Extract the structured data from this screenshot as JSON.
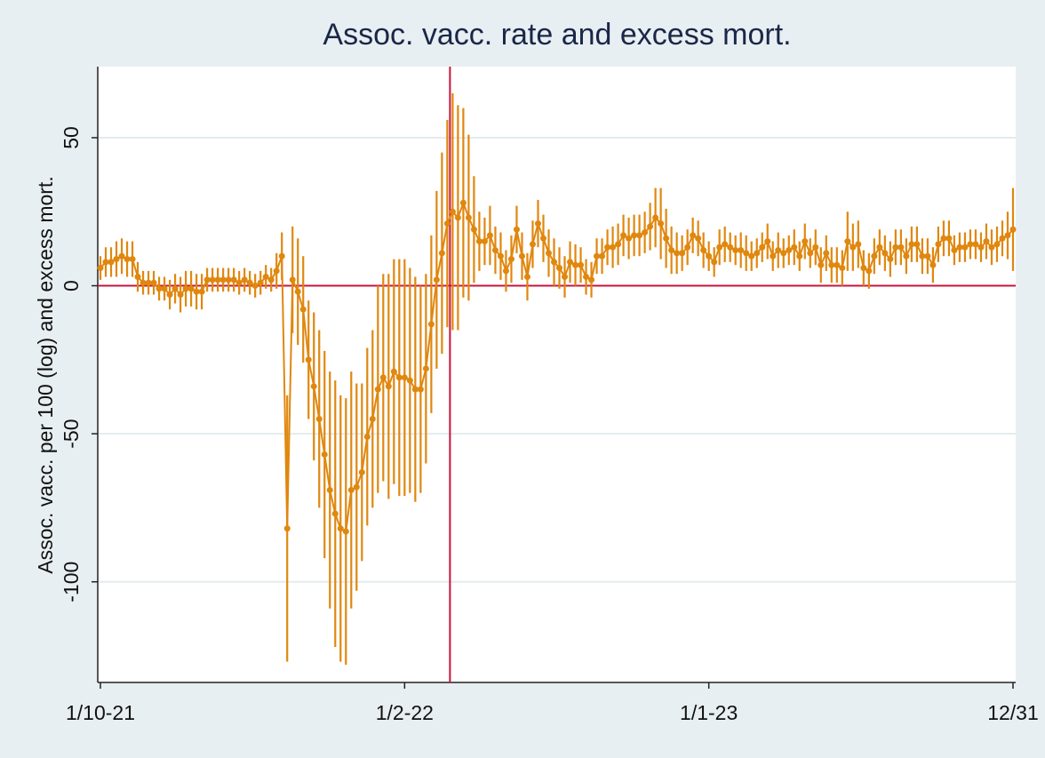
{
  "chart_data": {
    "type": "line",
    "title": "Assoc. vacc. rate and excess mort.",
    "ylabel": "Assoc. vacc. per 100 (log) and excess mort.",
    "x": [
      0,
      1,
      2,
      3,
      4,
      5,
      6,
      7,
      8,
      9,
      10,
      11,
      12,
      13,
      14,
      15,
      16,
      17,
      18,
      19,
      20,
      21,
      22,
      23,
      24,
      25,
      26,
      27,
      28,
      29,
      30,
      31,
      32,
      33,
      34,
      35,
      36,
      37,
      38,
      39,
      40,
      41,
      42,
      43,
      44,
      45,
      46,
      47,
      48,
      49,
      50,
      51,
      52,
      53,
      54,
      55,
      56,
      57,
      58,
      59,
      60,
      61,
      62,
      63,
      64,
      65,
      66,
      67,
      68,
      69,
      70,
      71,
      72,
      73,
      74,
      75,
      76,
      77,
      78,
      79,
      80,
      81,
      82,
      83,
      84,
      85,
      86,
      87,
      88,
      89,
      90,
      91,
      92,
      93,
      94,
      95,
      96,
      97,
      98,
      99,
      100,
      101,
      102,
      103,
      104,
      105,
      106,
      107,
      108,
      109,
      110,
      111,
      112,
      113,
      114,
      115,
      116,
      117,
      118,
      119,
      120,
      121,
      122,
      123,
      124,
      125,
      126,
      127,
      128,
      129,
      130,
      131,
      132,
      133,
      134,
      135,
      136,
      137,
      138,
      139,
      140,
      141,
      142,
      143,
      144,
      145,
      146,
      147,
      148,
      149,
      150,
      151,
      152,
      153,
      154,
      155,
      156,
      157,
      158,
      159,
      160,
      161,
      162,
      163,
      164,
      165,
      166,
      167,
      168,
      169,
      170,
      171
    ],
    "series": [
      {
        "color": "#e0870e",
        "values": [
          6,
          8,
          8,
          9,
          10,
          9,
          9,
          3,
          1,
          1,
          1,
          -1,
          -1,
          -3,
          -1,
          -3,
          -1,
          -1,
          -2,
          -2,
          2,
          2,
          2,
          2,
          2,
          2,
          1,
          2,
          1,
          0,
          1,
          3,
          2,
          5,
          10,
          -82,
          2,
          -2,
          -8,
          -25,
          -34,
          -45,
          -57,
          -69,
          -77,
          -82,
          -83,
          -69,
          -68,
          -63,
          -51,
          -45,
          -35,
          -31,
          -34,
          -29,
          -31,
          -31,
          -32,
          -35,
          -35,
          -28,
          -13,
          2,
          11,
          21,
          25,
          23,
          28,
          23,
          19,
          15,
          15,
          17,
          12,
          10,
          5,
          9,
          19,
          10,
          3,
          14,
          21,
          16,
          11,
          8,
          6,
          3,
          8,
          7,
          7,
          3,
          2,
          10,
          10,
          13,
          13,
          14,
          17,
          16,
          17,
          17,
          18,
          20,
          23,
          21,
          16,
          12,
          11,
          11,
          13,
          17,
          16,
          12,
          10,
          8,
          13,
          14,
          13,
          12,
          12,
          11,
          10,
          11,
          13,
          15,
          10,
          12,
          11,
          12,
          13,
          10,
          15,
          11,
          13,
          7,
          11,
          7,
          7,
          6,
          15,
          13,
          14,
          6,
          5,
          10,
          13,
          11,
          9,
          13,
          13,
          10,
          14,
          14,
          10,
          10,
          7,
          14,
          16,
          16,
          12,
          13,
          13,
          14,
          14,
          13,
          15,
          13,
          14,
          16,
          17,
          19
        ],
        "errors": [
          4,
          5,
          5,
          6,
          6,
          6,
          6,
          5,
          4,
          4,
          4,
          4,
          4,
          5,
          5,
          6,
          6,
          6,
          6,
          6,
          4,
          4,
          4,
          4,
          4,
          4,
          4,
          4,
          4,
          4,
          4,
          4,
          4,
          6,
          8,
          45,
          18,
          18,
          18,
          20,
          25,
          30,
          35,
          40,
          45,
          45,
          45,
          40,
          35,
          30,
          30,
          30,
          35,
          35,
          38,
          38,
          40,
          40,
          38,
          38,
          35,
          32,
          30,
          30,
          34,
          35,
          40,
          38,
          32,
          28,
          18,
          10,
          8,
          10,
          8,
          8,
          7,
          8,
          8,
          8,
          8,
          8,
          8,
          8,
          8,
          8,
          7,
          7,
          7,
          7,
          6,
          6,
          6,
          6,
          6,
          6,
          7,
          7,
          7,
          7,
          7,
          7,
          7,
          8,
          10,
          12,
          10,
          8,
          7,
          6,
          6,
          6,
          6,
          6,
          5,
          5,
          6,
          6,
          5,
          5,
          6,
          6,
          5,
          5,
          5,
          6,
          5,
          6,
          5,
          5,
          6,
          5,
          6,
          5,
          6,
          6,
          6,
          6,
          6,
          6,
          10,
          8,
          8,
          6,
          6,
          6,
          6,
          6,
          6,
          6,
          6,
          6,
          6,
          6,
          6,
          6,
          6,
          6,
          6,
          6,
          5,
          5,
          5,
          5,
          5,
          5,
          6,
          6,
          6,
          6,
          8,
          14
        ]
      }
    ],
    "xlim": [
      -0.5,
      171.5
    ],
    "xticks": [
      {
        "value": 0,
        "label": "1/10-21"
      },
      {
        "value": 57,
        "label": "1/2-22"
      },
      {
        "value": 114,
        "label": "1/1-23"
      },
      {
        "value": 171,
        "label": "12/31"
      }
    ],
    "ylim": [
      -134,
      74
    ],
    "yticks": [
      -100,
      -50,
      0,
      50
    ],
    "grid": true,
    "hline": 0,
    "vline": 65.5,
    "ref_color": "#c8143c"
  }
}
